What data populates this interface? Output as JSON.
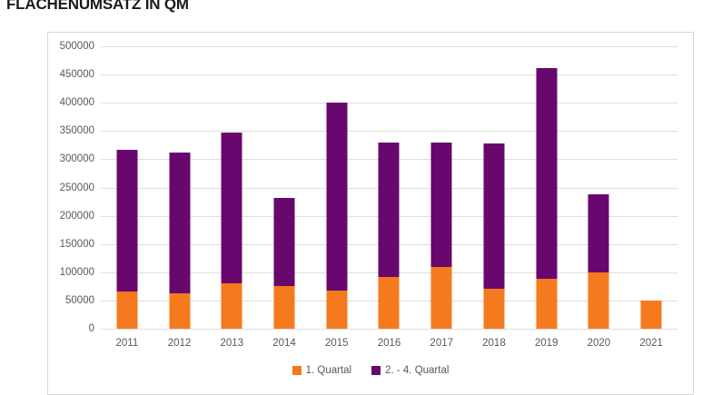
{
  "page": {
    "title": "FLÄCHENUMSATZ IN QM"
  },
  "chart_data": {
    "type": "bar",
    "stacked": true,
    "title": "FLÄCHENUMSATZ IN QM",
    "categories": [
      "2011",
      "2012",
      "2013",
      "2014",
      "2015",
      "2016",
      "2017",
      "2018",
      "2019",
      "2020",
      "2021"
    ],
    "series": [
      {
        "name": "1. Quartal",
        "color": "#f5791d",
        "values": [
          66000,
          63000,
          80000,
          75000,
          68000,
          92000,
          109000,
          71000,
          88000,
          100000,
          50000
        ]
      },
      {
        "name": "2. - 4. Quartal",
        "color": "#68076e",
        "values": [
          251000,
          249000,
          268000,
          157000,
          333000,
          238000,
          221000,
          257000,
          374000,
          138000,
          0
        ]
      }
    ],
    "totals": [
      317000,
      312000,
      348000,
      232000,
      401000,
      330000,
      330000,
      328000,
      462000,
      238000,
      50000
    ],
    "ylim": [
      0,
      500000
    ],
    "ytick_step": 50000,
    "ytick_labels": [
      "0",
      "50000",
      "100000",
      "150000",
      "200000",
      "250000",
      "300000",
      "350000",
      "400000",
      "450000",
      "500000"
    ],
    "xlabel": "",
    "ylabel": "",
    "grid": true,
    "legend_position": "bottom",
    "colors": {
      "gridline": "#dedede",
      "axis_text": "#595959",
      "panel_border": "#d6d6d6",
      "title_text": "#1a1a1a"
    }
  }
}
